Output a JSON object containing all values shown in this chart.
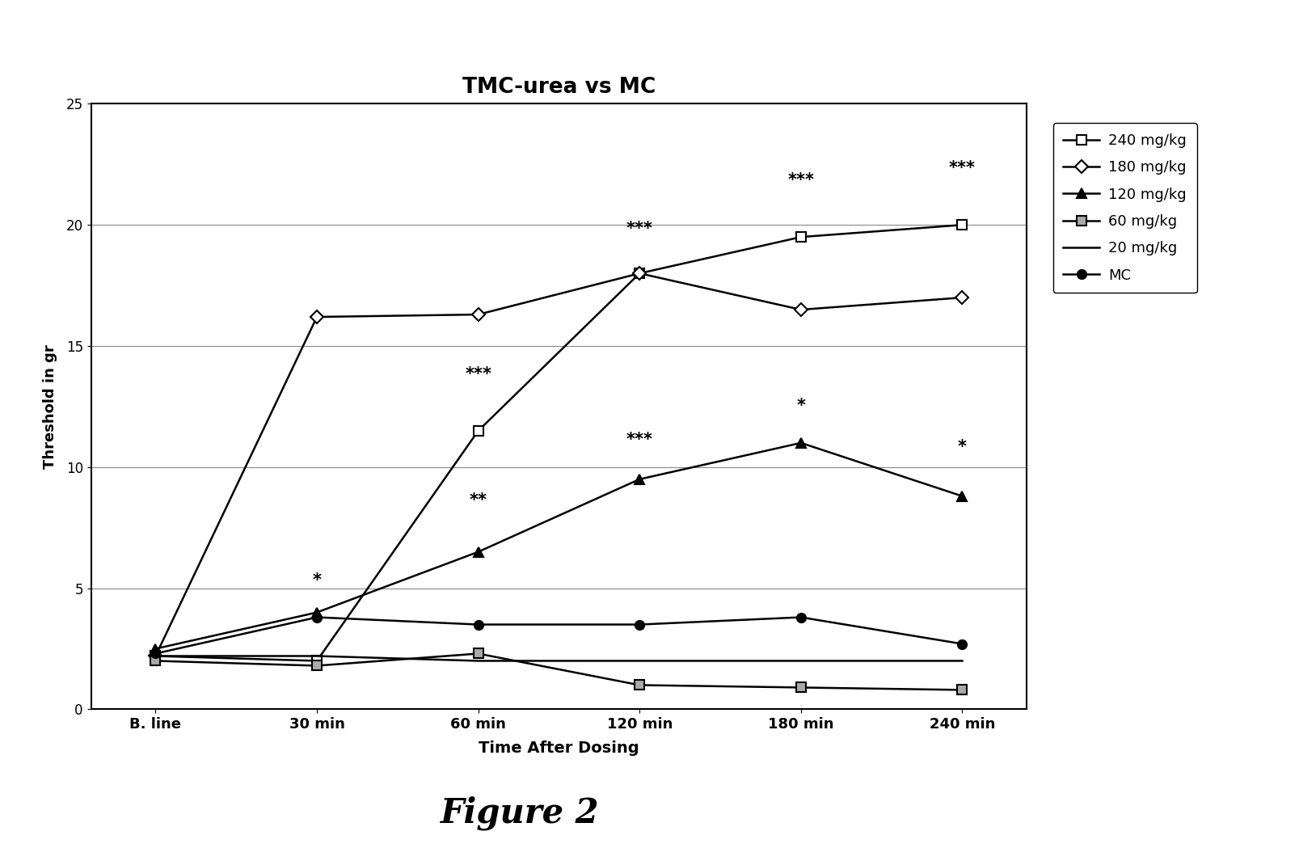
{
  "title": "TMC-urea vs MC",
  "xlabel": "Time After Dosing",
  "ylabel": "Threshold in gr",
  "figure_caption": "Figure 2",
  "x_labels": [
    "B. line",
    "30 min",
    "60 min",
    "120 min",
    "180 min",
    "240 min"
  ],
  "x_values": [
    0,
    1,
    2,
    3,
    4,
    5
  ],
  "ylim": [
    0,
    25
  ],
  "yticks": [
    0,
    5,
    10,
    15,
    20,
    25
  ],
  "series_names": [
    "240 mg/kg",
    "180 mg/kg",
    "120 mg/kg",
    "60 mg/kg",
    "20 mg/kg",
    "MC"
  ],
  "series_values": {
    "240 mg/kg": [
      2.2,
      2.0,
      11.5,
      18.0,
      19.5,
      20.0
    ],
    "180 mg/kg": [
      2.2,
      16.2,
      16.3,
      18.0,
      16.5,
      17.0
    ],
    "120 mg/kg": [
      2.5,
      4.0,
      6.5,
      9.5,
      11.0,
      8.8
    ],
    "60 mg/kg": [
      2.0,
      1.8,
      2.3,
      1.0,
      0.9,
      0.8
    ],
    "20 mg/kg": [
      2.2,
      2.2,
      2.0,
      2.0,
      2.0,
      2.0
    ],
    "MC": [
      2.3,
      3.8,
      3.5,
      3.5,
      3.8,
      2.7
    ]
  },
  "annotations": [
    [
      1,
      5.0,
      "*"
    ],
    [
      2,
      8.3,
      "**"
    ],
    [
      2,
      13.5,
      "***"
    ],
    [
      3,
      10.8,
      "***"
    ],
    [
      3,
      19.5,
      "***"
    ],
    [
      4,
      12.2,
      "*"
    ],
    [
      4,
      21.5,
      "***"
    ],
    [
      5,
      10.5,
      "*"
    ],
    [
      5,
      22.0,
      "***"
    ]
  ],
  "background_color": "#ffffff"
}
